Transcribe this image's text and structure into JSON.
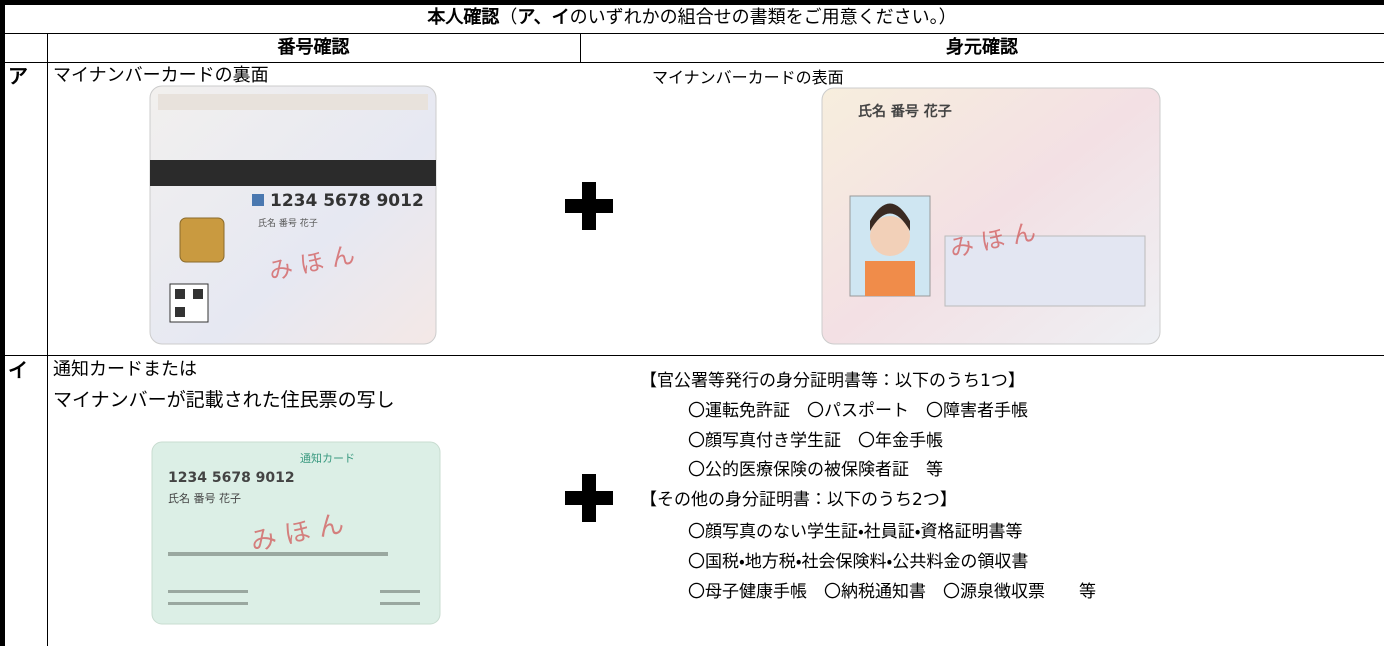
{
  "header": {
    "title_parts": [
      "本人確認",
      "（",
      "ア、イ",
      "のいずれかの組合せの書類をご用意ください。）"
    ]
  },
  "table": {
    "columns": [
      "番号確認",
      "身元確認"
    ],
    "rows": [
      {
        "label": "ア",
        "number_check": [
          "マイナンバーカードの裏面"
        ],
        "identity_check": [
          "マイナンバーカードの表面"
        ]
      },
      {
        "label": "イ",
        "number_check": [
          "通知カードまたは",
          "マイナンバーが記載された住民票の写し"
        ],
        "identity_groups": [
          {
            "heading": "【官公署等発行の身分証明書等：以下のうち1つ】",
            "items": [
              "〇運転免許証　〇パスポート　〇障害者手帳",
              "〇顔写真付き学生証　〇年金手帳",
              "〇公的医療保険の被保険者証　等"
            ]
          },
          {
            "heading": "【その他の身分証明書：以下のうち2つ】",
            "items": [
              "〇顔写真のない学生証・社員証・資格証明書等",
              "〇国税・地方税・社会保険料・公共料金の領収書",
              "〇母子健康手帳　〇納税通知書　〇源泉徴収票　　等"
            ]
          }
        ]
      }
    ]
  },
  "cards": [
    {
      "texts": [
        "1234 5678 9012",
        "氏名 番号 花子",
        "み ほ ん"
      ]
    },
    {
      "texts": [
        "氏名 番号 花子",
        "み ほ ん"
      ]
    },
    {
      "texts": [
        "通知カード",
        "1234 5678 9012",
        "氏名 番号 花子",
        "み ほ ん"
      ]
    }
  ]
}
